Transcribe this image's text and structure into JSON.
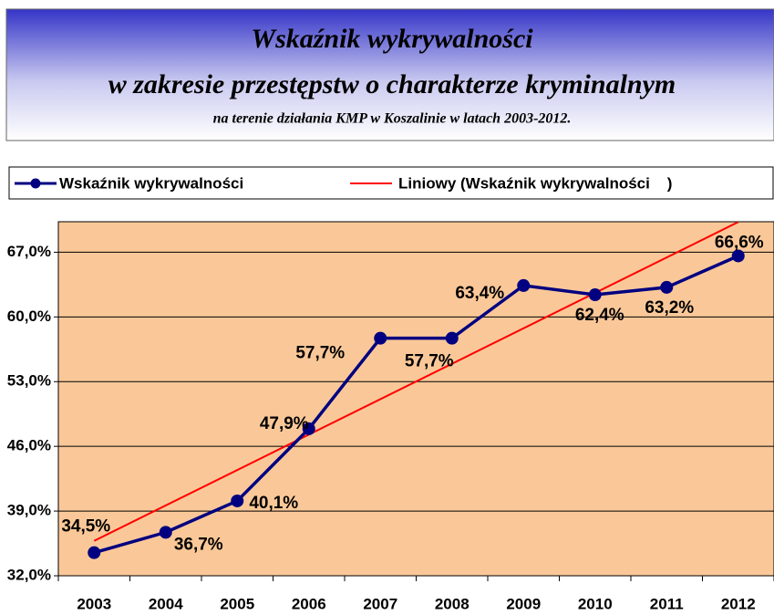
{
  "chart_data": {
    "type": "line",
    "title_lines": [
      "Wskaźnik wykrywalności",
      "w zakresie przestępstw o charakterze kryminalnym"
    ],
    "subtitle": "na terenie działania KMP w Koszalinie w latach 2003-2012.",
    "categories": [
      "2003",
      "2004",
      "2005",
      "2006",
      "2007",
      "2008",
      "2009",
      "2010",
      "2011",
      "2012"
    ],
    "series": [
      {
        "name": "Wskaźnik wykrywalności",
        "color": "#000080",
        "values": [
          34.5,
          36.7,
          40.1,
          47.9,
          57.7,
          57.7,
          63.4,
          62.4,
          63.2,
          66.6
        ],
        "value_labels": [
          "34,5%",
          "36,7%",
          "40,1%",
          "47,9%",
          "57,7%",
          "57,7%",
          "63,4%",
          "62,4%",
          "63,2%",
          "66,6%"
        ]
      }
    ],
    "trend": {
      "name": "Liniowy (Wskaźnik wykrywalności    )",
      "color": "#ff0000"
    },
    "ylim": [
      32,
      70.3
    ],
    "yticks": [
      {
        "value": 32,
        "label": "32,0%"
      },
      {
        "value": 39,
        "label": "39,0%"
      },
      {
        "value": 46,
        "label": "46,0%"
      },
      {
        "value": 53,
        "label": "53,0%"
      },
      {
        "value": 60,
        "label": "60,0%"
      },
      {
        "value": 67,
        "label": "67,0%"
      }
    ],
    "grid": true,
    "legend": "top",
    "plot_background": "#fac898"
  }
}
